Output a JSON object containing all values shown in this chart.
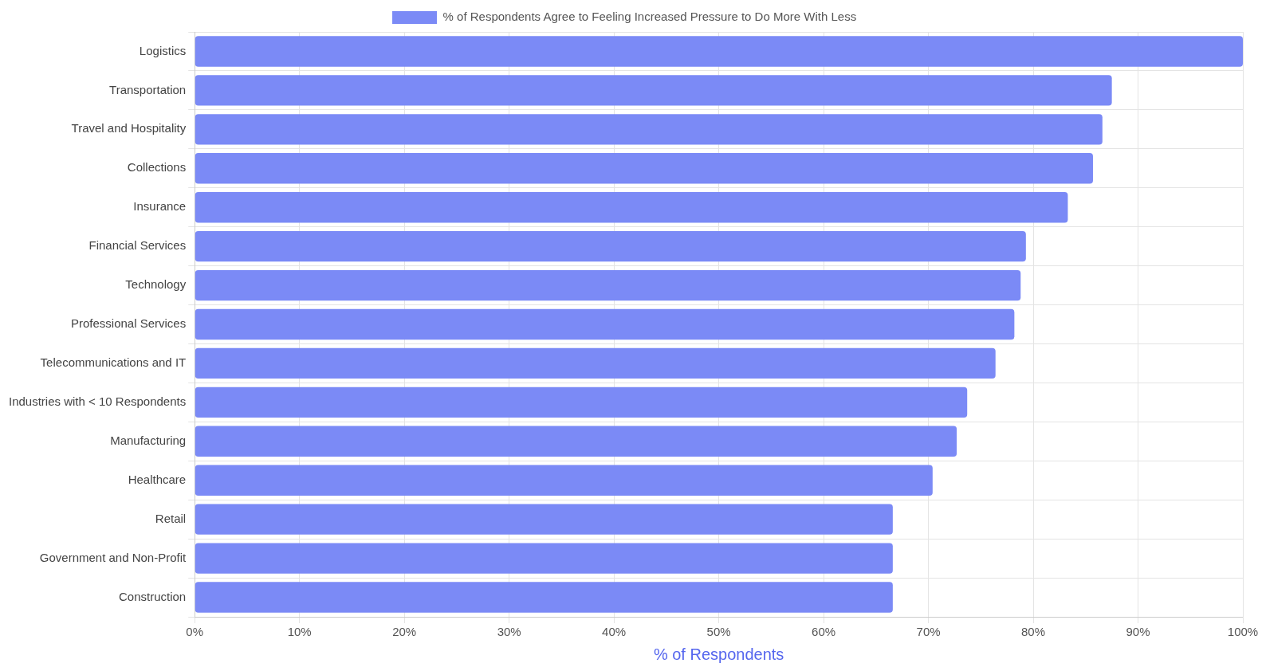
{
  "chart_data": {
    "type": "bar",
    "orientation": "horizontal",
    "xlabel": "% of Respondents",
    "categories": [
      "Logistics",
      "Transportation",
      "Travel and Hospitality",
      "Collections",
      "Insurance",
      "Financial Services",
      "Technology",
      "Professional Services",
      "Telecommunications and IT",
      "Industries with < 10 Respondents",
      "Manufacturing",
      "Healthcare",
      "Retail",
      "Government and Non-Profit",
      "Construction"
    ],
    "series": [
      {
        "name": "% of Respondents Agree to Feeling Increased Pressure to Do More With Less",
        "color": "#7b8af6",
        "values": [
          100,
          87.5,
          86.6,
          85.7,
          83.3,
          79.3,
          78.8,
          78.2,
          76.4,
          73.7,
          72.7,
          70.4,
          66.6,
          66.6,
          66.6
        ]
      }
    ],
    "xlim": [
      0,
      100
    ],
    "xticks": [
      {
        "value": 0,
        "label": "0%"
      },
      {
        "value": 10,
        "label": "10%"
      },
      {
        "value": 20,
        "label": "20%"
      },
      {
        "value": 30,
        "label": "30%"
      },
      {
        "value": 40,
        "label": "40%"
      },
      {
        "value": 50,
        "label": "50%"
      },
      {
        "value": 60,
        "label": "60%"
      },
      {
        "value": 70,
        "label": "70%"
      },
      {
        "value": 80,
        "label": "80%"
      },
      {
        "value": 90,
        "label": "90%"
      },
      {
        "value": 100,
        "label": "100%"
      }
    ],
    "grid": true,
    "legend": "top"
  }
}
